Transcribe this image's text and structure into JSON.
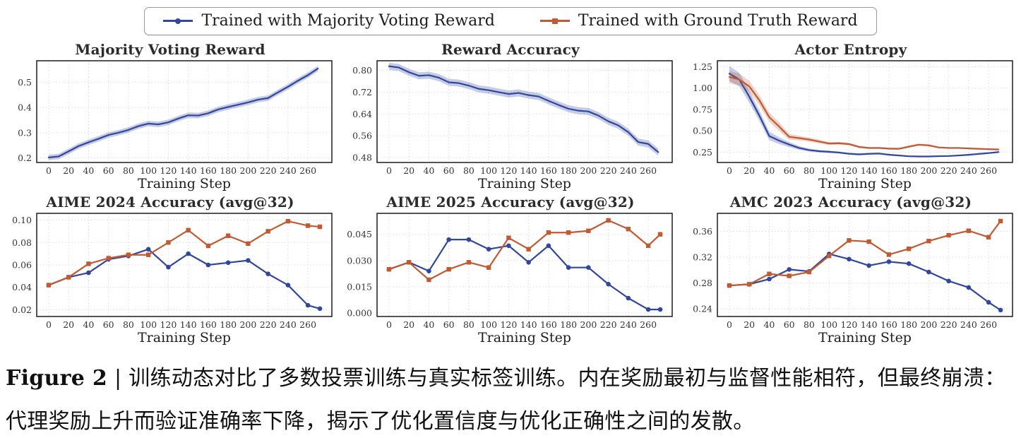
{
  "colors": {
    "majority_voting": "#31479e",
    "ground_truth": "#c05a32",
    "majority_band": "rgba(49,71,158,0.28)",
    "ground_band": "rgba(192,90,50,0.26)",
    "grid": "#dcdcdc",
    "axis": "#1c1c1c",
    "tick_text": "#333333"
  },
  "legend": {
    "items": [
      {
        "label": "Trained with Majority Voting Reward",
        "series": "majority_voting",
        "marker": "circle"
      },
      {
        "label": "Trained with Ground Truth Reward",
        "series": "ground_truth",
        "marker": "square"
      }
    ]
  },
  "chart_data": [
    {
      "type": "line",
      "title": "Majority Voting Reward",
      "xlabel": "Training Step",
      "xlim": [
        -12,
        284
      ],
      "ylim": [
        0.182,
        0.585
      ],
      "xticks": [
        0,
        20,
        40,
        60,
        80,
        100,
        120,
        140,
        160,
        180,
        200,
        220,
        240,
        260
      ],
      "ytick_vals": [
        0.2,
        0.3,
        0.4,
        0.5
      ],
      "ytick_labels": [
        "0.2",
        "0.3",
        "0.4",
        "0.5"
      ],
      "x": [
        0,
        10,
        20,
        30,
        40,
        50,
        60,
        70,
        80,
        90,
        100,
        110,
        120,
        130,
        140,
        150,
        160,
        170,
        180,
        190,
        200,
        210,
        220,
        230,
        240,
        250,
        260,
        270
      ],
      "series": [
        {
          "name": "Trained with Majority Voting Reward",
          "color": "majority_voting",
          "marker": "none",
          "band": 0.011,
          "y": [
            0.202,
            0.206,
            0.226,
            0.247,
            0.262,
            0.276,
            0.291,
            0.3,
            0.311,
            0.326,
            0.336,
            0.333,
            0.341,
            0.356,
            0.369,
            0.368,
            0.377,
            0.392,
            0.402,
            0.411,
            0.42,
            0.431,
            0.437,
            0.46,
            0.482,
            0.506,
            0.528,
            0.554
          ]
        }
      ]
    },
    {
      "type": "line",
      "title": "Reward Accuracy",
      "xlabel": "Training Step",
      "xlim": [
        -12,
        284
      ],
      "ylim": [
        0.462,
        0.835
      ],
      "xticks": [
        0,
        20,
        40,
        60,
        80,
        100,
        120,
        140,
        160,
        180,
        200,
        220,
        240,
        260
      ],
      "ytick_vals": [
        0.48,
        0.56,
        0.64,
        0.72,
        0.8
      ],
      "ytick_labels": [
        "0.48",
        "0.56",
        "0.64",
        "0.72",
        "0.80"
      ],
      "x": [
        0,
        10,
        20,
        30,
        40,
        50,
        60,
        70,
        80,
        90,
        100,
        110,
        120,
        130,
        140,
        150,
        160,
        170,
        180,
        190,
        200,
        210,
        220,
        230,
        240,
        250,
        260,
        270
      ],
      "series": [
        {
          "name": "Trained with Majority Voting Reward",
          "color": "majority_voting",
          "marker": "none",
          "band": 0.013,
          "y": [
            0.815,
            0.81,
            0.793,
            0.78,
            0.782,
            0.773,
            0.756,
            0.753,
            0.744,
            0.732,
            0.727,
            0.72,
            0.713,
            0.717,
            0.709,
            0.704,
            0.688,
            0.673,
            0.659,
            0.652,
            0.649,
            0.634,
            0.613,
            0.598,
            0.573,
            0.537,
            0.53,
            0.5
          ]
        }
      ]
    },
    {
      "type": "line",
      "title": "Actor Entropy",
      "xlabel": "Training Step",
      "xlim": [
        -12,
        284
      ],
      "ylim": [
        0.13,
        1.32
      ],
      "xticks": [
        0,
        20,
        40,
        60,
        80,
        100,
        120,
        140,
        160,
        180,
        200,
        220,
        240,
        260
      ],
      "ytick_vals": [
        0.25,
        0.5,
        0.75,
        1.0,
        1.25
      ],
      "ytick_labels": [
        "0.25",
        "0.50",
        "0.75",
        "1.00",
        "1.25"
      ],
      "x": [
        0,
        10,
        20,
        30,
        40,
        50,
        60,
        70,
        80,
        90,
        100,
        110,
        120,
        130,
        140,
        150,
        160,
        170,
        180,
        190,
        200,
        210,
        220,
        230,
        240,
        250,
        260,
        270
      ],
      "series": [
        {
          "name": "Trained with Majority Voting Reward",
          "color": "majority_voting",
          "marker": "none",
          "band": [
            0.09,
            0.08,
            0.07,
            0.06,
            0.05,
            0.04,
            0.03,
            0.022,
            0.018,
            0.015,
            0.013,
            0.012,
            0.011,
            0.011,
            0.011,
            0.011,
            0.01,
            0.01,
            0.009,
            0.009,
            0.009,
            0.009,
            0.009,
            0.009,
            0.009,
            0.009,
            0.009,
            0.009
          ],
          "y": [
            1.17,
            1.1,
            0.9,
            0.68,
            0.44,
            0.385,
            0.34,
            0.3,
            0.275,
            0.262,
            0.255,
            0.246,
            0.232,
            0.225,
            0.231,
            0.235,
            0.221,
            0.212,
            0.203,
            0.2,
            0.2,
            0.204,
            0.206,
            0.212,
            0.22,
            0.23,
            0.24,
            0.252
          ]
        },
        {
          "name": "Trained with Ground Truth Reward",
          "color": "ground_truth",
          "marker": "none",
          "band": [
            0.07,
            0.07,
            0.065,
            0.06,
            0.055,
            0.05,
            0.035,
            0.028,
            0.024,
            0.021,
            0.018,
            0.017,
            0.016,
            0.014,
            0.013,
            0.013,
            0.012,
            0.012,
            0.013,
            0.013,
            0.013,
            0.011,
            0.011,
            0.011,
            0.01,
            0.01,
            0.01,
            0.01
          ],
          "y": [
            1.13,
            1.1,
            1.02,
            0.86,
            0.66,
            0.55,
            0.43,
            0.415,
            0.398,
            0.375,
            0.352,
            0.355,
            0.345,
            0.312,
            0.3,
            0.3,
            0.292,
            0.29,
            0.315,
            0.338,
            0.33,
            0.306,
            0.3,
            0.3,
            0.294,
            0.29,
            0.286,
            0.282
          ]
        }
      ]
    },
    {
      "type": "line",
      "title": "AIME 2024 Accuracy (avg@32)",
      "xlabel": "Training Step",
      "xlim": [
        -12,
        284
      ],
      "ylim": [
        0.014,
        0.106
      ],
      "xticks": [
        0,
        20,
        40,
        60,
        80,
        100,
        120,
        140,
        160,
        180,
        200,
        220,
        240,
        260
      ],
      "ytick_vals": [
        0.02,
        0.04,
        0.06,
        0.08,
        0.1
      ],
      "ytick_labels": [
        "0.02",
        "0.04",
        "0.06",
        "0.08",
        "0.10"
      ],
      "x": [
        0,
        20,
        40,
        60,
        80,
        100,
        120,
        140,
        160,
        180,
        200,
        220,
        240,
        260,
        272
      ],
      "series": [
        {
          "name": "Trained with Majority Voting Reward",
          "color": "majority_voting",
          "marker": "circle",
          "y": [
            0.042,
            0.049,
            0.053,
            0.065,
            0.068,
            0.074,
            0.058,
            0.07,
            0.06,
            0.062,
            0.064,
            0.052,
            0.042,
            0.024,
            0.021
          ]
        },
        {
          "name": "Trained with Ground Truth Reward",
          "color": "ground_truth",
          "marker": "square",
          "y": [
            0.042,
            0.049,
            0.061,
            0.066,
            0.069,
            0.069,
            0.08,
            0.091,
            0.077,
            0.086,
            0.079,
            0.09,
            0.099,
            0.095,
            0.094
          ]
        }
      ]
    },
    {
      "type": "line",
      "title": "AIME 2025 Accuracy (avg@32)",
      "xlabel": "Training Step",
      "xlim": [
        -12,
        284
      ],
      "ylim": [
        -0.002,
        0.057
      ],
      "xticks": [
        0,
        20,
        40,
        60,
        80,
        100,
        120,
        140,
        160,
        180,
        200,
        220,
        240,
        260
      ],
      "ytick_vals": [
        0.0,
        0.015,
        0.03,
        0.045
      ],
      "ytick_labels": [
        "0.000",
        "0.015",
        "0.030",
        "0.045"
      ],
      "x": [
        0,
        20,
        40,
        60,
        80,
        100,
        120,
        140,
        160,
        180,
        200,
        220,
        240,
        260,
        272
      ],
      "series": [
        {
          "name": "Trained with Majority Voting Reward",
          "color": "majority_voting",
          "marker": "circle",
          "y": [
            0.025,
            0.029,
            0.024,
            0.042,
            0.042,
            0.0365,
            0.0385,
            0.029,
            0.0385,
            0.026,
            0.026,
            0.0165,
            0.0085,
            0.002,
            0.002
          ]
        },
        {
          "name": "Trained with Ground Truth Reward",
          "color": "ground_truth",
          "marker": "square",
          "y": [
            0.025,
            0.029,
            0.019,
            0.025,
            0.029,
            0.026,
            0.043,
            0.0365,
            0.046,
            0.046,
            0.047,
            0.053,
            0.048,
            0.0385,
            0.045
          ]
        }
      ]
    },
    {
      "type": "line",
      "title": "AMC 2023 Accuracy (avg@32)",
      "xlabel": "Training Step",
      "xlim": [
        -12,
        284
      ],
      "ylim": [
        0.228,
        0.388
      ],
      "xticks": [
        0,
        20,
        40,
        60,
        80,
        100,
        120,
        140,
        160,
        180,
        200,
        220,
        240,
        260
      ],
      "ytick_vals": [
        0.24,
        0.28,
        0.32,
        0.36
      ],
      "ytick_labels": [
        "0.24",
        "0.28",
        "0.32",
        "0.36"
      ],
      "x": [
        0,
        20,
        40,
        60,
        80,
        100,
        120,
        140,
        160,
        180,
        200,
        220,
        240,
        260,
        272
      ],
      "series": [
        {
          "name": "Trained with Majority Voting Reward",
          "color": "majority_voting",
          "marker": "circle",
          "y": [
            0.276,
            0.278,
            0.286,
            0.301,
            0.298,
            0.325,
            0.317,
            0.307,
            0.313,
            0.31,
            0.297,
            0.283,
            0.273,
            0.25,
            0.238
          ]
        },
        {
          "name": "Trained with Ground Truth Reward",
          "color": "ground_truth",
          "marker": "square",
          "y": [
            0.276,
            0.278,
            0.294,
            0.291,
            0.297,
            0.322,
            0.346,
            0.344,
            0.324,
            0.333,
            0.345,
            0.354,
            0.361,
            0.351,
            0.376
          ]
        }
      ]
    }
  ],
  "caption": {
    "prefix": "Figure 2",
    "separator": " | ",
    "body": "训练动态对比了多数投票训练与真实标签训练。内在奖励最初与监督性能相符，但最终崩溃：代理奖励上升而验证准确率下降，揭示了优化置信度与优化正确性之间的发散。"
  }
}
